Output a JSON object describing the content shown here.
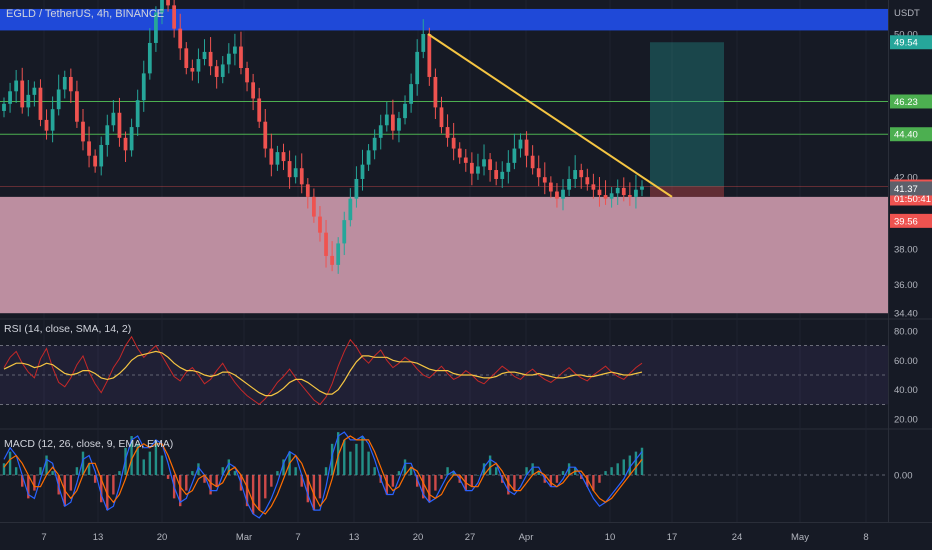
{
  "header": {
    "title": "EGLD / TetherUS, 4h, BINANCE",
    "currency": "USDT"
  },
  "chart_data": {
    "type": "candlestick",
    "symbol": "EGLD / TetherUS",
    "interval": "4h",
    "exchange": "BINANCE",
    "price_axis": {
      "ticks": [
        "50.00",
        "42.00",
        "38.00",
        "36.00",
        "34.40"
      ],
      "tick_values": [
        50.0,
        42.0,
        38.0,
        36.0,
        34.4
      ]
    },
    "time_axis": {
      "labels": [
        "7",
        "13",
        "20",
        "Mar",
        "7",
        "13",
        "20",
        "27",
        "Apr",
        "10",
        "17",
        "24",
        "May",
        "8"
      ]
    },
    "close_series": [
      46.1,
      46.8,
      47.4,
      45.9,
      46.6,
      47.0,
      45.2,
      44.6,
      45.8,
      46.9,
      47.6,
      46.8,
      45.1,
      44.0,
      43.2,
      42.6,
      43.8,
      44.9,
      45.6,
      44.2,
      43.5,
      44.8,
      46.3,
      47.8,
      49.5,
      51.2,
      52.4,
      51.6,
      50.3,
      49.2,
      48.1,
      47.9,
      48.6,
      49.0,
      48.2,
      47.6,
      48.3,
      48.9,
      49.3,
      48.1,
      47.3,
      46.4,
      45.1,
      43.6,
      42.7,
      43.4,
      42.9,
      42.0,
      42.5,
      41.6,
      40.9,
      39.8,
      38.9,
      37.6,
      37.1,
      38.3,
      39.6,
      40.8,
      41.9,
      42.7,
      43.5,
      44.2,
      44.9,
      45.5,
      44.6,
      45.3,
      46.1,
      47.2,
      49.0,
      50.0,
      47.6,
      45.9,
      44.8,
      44.2,
      43.6,
      43.1,
      42.8,
      42.2,
      42.6,
      43.0,
      42.4,
      41.9,
      42.3,
      42.8,
      43.6,
      44.1,
      43.2,
      42.5,
      42.0,
      41.7,
      41.2,
      40.8,
      41.3,
      41.9,
      42.4,
      42.0,
      41.6,
      41.3,
      41.0,
      40.8,
      41.1,
      41.4,
      41.0,
      40.9,
      41.3,
      41.48
    ],
    "rsi": {
      "label": "RSI (14, close, SMA, 14, 2)",
      "ticks": [
        "80.00",
        "60.00",
        "40.00",
        "20.00"
      ],
      "tick_values": [
        80,
        60,
        40,
        20
      ],
      "bands": [
        70,
        50,
        30
      ],
      "values": [
        55,
        62,
        66,
        58,
        52,
        48,
        61,
        68,
        55,
        45,
        42,
        48,
        57,
        63,
        52,
        44,
        38,
        46,
        55,
        61,
        70,
        76,
        68,
        62,
        66,
        70,
        63,
        56,
        49,
        46,
        52,
        55,
        50,
        44,
        47,
        53,
        58,
        51,
        45,
        40,
        36,
        33,
        30,
        34,
        39,
        45,
        49,
        54,
        48,
        43,
        38,
        33,
        30,
        35,
        44,
        56,
        66,
        74,
        69,
        62,
        58,
        63,
        67,
        60,
        55,
        58,
        62,
        59,
        54,
        50,
        48,
        52,
        56,
        51,
        47,
        49,
        53,
        50,
        46,
        44,
        48,
        52,
        56,
        53,
        49,
        47,
        51,
        54,
        50,
        47,
        45,
        48,
        52,
        55,
        51,
        48,
        46,
        50,
        53,
        56,
        52,
        49,
        47,
        51,
        55,
        58
      ],
      "sma": [
        54,
        56,
        58,
        58,
        57,
        55,
        56,
        58,
        57,
        54,
        51,
        50,
        51,
        53,
        53,
        51,
        48,
        47,
        48,
        51,
        55,
        60,
        63,
        64,
        65,
        66,
        65,
        62,
        58,
        55,
        53,
        53,
        52,
        50,
        49,
        50,
        52,
        52,
        50,
        47,
        44,
        41,
        38,
        36,
        36,
        38,
        41,
        45,
        47,
        47,
        45,
        42,
        39,
        37,
        37,
        40,
        46,
        53,
        59,
        63,
        63,
        62,
        62,
        62,
        60,
        59,
        59,
        59,
        58,
        56,
        54,
        53,
        53,
        53,
        51,
        50,
        50,
        50,
        49,
        48,
        48,
        49,
        51,
        52,
        52,
        51,
        50,
        50,
        51,
        50,
        49,
        48,
        48,
        49,
        50,
        50,
        49,
        49,
        50,
        51,
        52,
        51,
        50,
        50,
        51,
        52
      ]
    },
    "macd": {
      "label": "MACD (12, 26, close, 9, EMA, EMA)",
      "ticks": [
        "0.00"
      ],
      "tick_values": [
        0
      ],
      "histogram": [
        0.3,
        0.6,
        0.2,
        -0.3,
        -0.6,
        -0.4,
        0.2,
        0.5,
        0.1,
        -0.5,
        -0.8,
        -0.4,
        0.2,
        0.6,
        0.3,
        -0.2,
        -0.7,
        -0.9,
        -0.5,
        0.1,
        0.7,
        1.0,
        0.8,
        0.4,
        0.6,
        0.9,
        0.5,
        -0.1,
        -0.6,
        -0.8,
        -0.4,
        0.1,
        0.3,
        -0.2,
        -0.5,
        -0.3,
        0.2,
        0.4,
        0.1,
        -0.4,
        -0.8,
        -1.0,
        -0.9,
        -0.6,
        -0.3,
        0.1,
        0.4,
        0.6,
        0.2,
        -0.3,
        -0.7,
        -0.9,
        -0.6,
        0.2,
        0.8,
        1.1,
        0.9,
        0.6,
        0.8,
        1.0,
        0.6,
        0.2,
        -0.2,
        -0.5,
        -0.3,
        0.1,
        0.4,
        0.2,
        -0.3,
        -0.6,
        -0.7,
        -0.4,
        -0.1,
        0.2,
        0.1,
        -0.2,
        -0.4,
        -0.3,
        0.0,
        0.3,
        0.5,
        0.2,
        -0.2,
        -0.5,
        -0.4,
        -0.1,
        0.2,
        0.3,
        0.1,
        -0.2,
        -0.3,
        -0.2,
        0.1,
        0.3,
        0.2,
        -0.1,
        -0.3,
        -0.4,
        -0.2,
        0.1,
        0.2,
        0.3,
        0.4,
        0.5,
        0.6,
        0.7
      ],
      "macd_line": [
        0.4,
        0.7,
        0.5,
        0.0,
        -0.5,
        -0.6,
        -0.1,
        0.4,
        0.3,
        -0.3,
        -0.8,
        -0.7,
        -0.2,
        0.4,
        0.5,
        0.1,
        -0.5,
        -0.9,
        -0.8,
        -0.3,
        0.4,
        0.9,
        1.0,
        0.7,
        0.7,
        0.9,
        0.8,
        0.3,
        -0.3,
        -0.7,
        -0.6,
        -0.2,
        0.2,
        0.0,
        -0.4,
        -0.4,
        0.0,
        0.3,
        0.2,
        -0.2,
        -0.7,
        -1.0,
        -1.1,
        -0.9,
        -0.6,
        -0.2,
        0.3,
        0.6,
        0.5,
        0.0,
        -0.5,
        -0.9,
        -0.9,
        -0.3,
        0.5,
        1.0,
        1.1,
        0.9,
        0.9,
        1.0,
        0.8,
        0.4,
        -0.1,
        -0.5,
        -0.5,
        -0.1,
        0.3,
        0.3,
        -0.1,
        -0.5,
        -0.7,
        -0.6,
        -0.3,
        0.0,
        0.1,
        -0.1,
        -0.4,
        -0.4,
        -0.2,
        0.2,
        0.4,
        0.3,
        -0.1,
        -0.4,
        -0.5,
        -0.3,
        0.0,
        0.2,
        0.2,
        -0.1,
        -0.3,
        -0.3,
        -0.1,
        0.2,
        0.2,
        0.0,
        -0.3,
        -0.6,
        -0.8,
        -0.7,
        -0.5,
        -0.3,
        -0.1,
        0.2,
        0.4,
        0.6
      ],
      "signal_line": [
        0.2,
        0.4,
        0.5,
        0.3,
        0.0,
        -0.3,
        -0.3,
        0.0,
        0.2,
        0.0,
        -0.4,
        -0.6,
        -0.4,
        0.0,
        0.3,
        0.3,
        -0.1,
        -0.5,
        -0.7,
        -0.5,
        -0.1,
        0.4,
        0.7,
        0.8,
        0.7,
        0.8,
        0.8,
        0.5,
        0.1,
        -0.3,
        -0.5,
        -0.4,
        -0.1,
        0.0,
        -0.2,
        -0.3,
        -0.2,
        0.1,
        0.2,
        0.0,
        -0.3,
        -0.7,
        -0.9,
        -1.0,
        -0.8,
        -0.5,
        -0.1,
        0.3,
        0.5,
        0.3,
        -0.1,
        -0.5,
        -0.8,
        -0.6,
        -0.1,
        0.5,
        0.9,
        1.0,
        0.9,
        0.9,
        0.9,
        0.6,
        0.2,
        -0.2,
        -0.4,
        -0.3,
        0.0,
        0.2,
        0.1,
        -0.2,
        -0.5,
        -0.6,
        -0.5,
        -0.2,
        0.0,
        0.0,
        -0.2,
        -0.3,
        -0.3,
        0.0,
        0.2,
        0.3,
        0.1,
        -0.2,
        -0.4,
        -0.4,
        -0.2,
        0.0,
        0.1,
        0.0,
        -0.2,
        -0.3,
        -0.2,
        0.0,
        0.1,
        0.1,
        -0.1,
        -0.4,
        -0.6,
        -0.7,
        -0.6,
        -0.4,
        -0.2,
        0.0,
        0.2,
        0.4
      ]
    },
    "levels": [
      {
        "name": "resistance-zone",
        "top": 51.4,
        "bottom": 50.2,
        "color": "#1f49d8"
      },
      {
        "name": "support-zone",
        "top": 40.9,
        "bottom": 34.4,
        "color": "#c998aa"
      },
      {
        "name": "level-46-23",
        "price": 46.23,
        "color": "#4caf50"
      },
      {
        "name": "level-44-40",
        "price": 44.4,
        "color": "#4caf50"
      }
    ],
    "trendline": {
      "from_price": 50.0,
      "to_price": 40.9,
      "color": "#f5c542"
    },
    "position": {
      "entry": 41.48,
      "target": 49.54,
      "stop": 40.9
    },
    "price_badges": [
      {
        "name": "badge-49-54",
        "text": "49.54",
        "price": 49.54,
        "bg": "#26a69a",
        "fg": "#ffffff"
      },
      {
        "name": "badge-46-23",
        "text": "46.23",
        "price": 46.23,
        "bg": "#4caf50",
        "fg": "#ffffff"
      },
      {
        "name": "badge-44-40",
        "text": "44.40",
        "price": 44.4,
        "bg": "#4caf50",
        "fg": "#ffffff"
      },
      {
        "name": "badge-last-price",
        "text": "41.48",
        "sub": "01:50:41",
        "price": 41.48,
        "bg": "#ef5350",
        "fg": "#ffffff"
      },
      {
        "name": "badge-41-37",
        "text": "41.37",
        "price": 41.37,
        "bg": "#5d606b",
        "fg": "#ffffff"
      },
      {
        "name": "badge-39-56",
        "text": "39.56",
        "price": 39.56,
        "bg": "#ef5350",
        "fg": "#ffffff"
      }
    ],
    "colors": {
      "up": "#26a69a",
      "down": "#ef5350",
      "rsi": "#c62828",
      "rsi_ma": "#f5c542",
      "macd": "#2962ff",
      "signal": "#ff6d00"
    }
  }
}
